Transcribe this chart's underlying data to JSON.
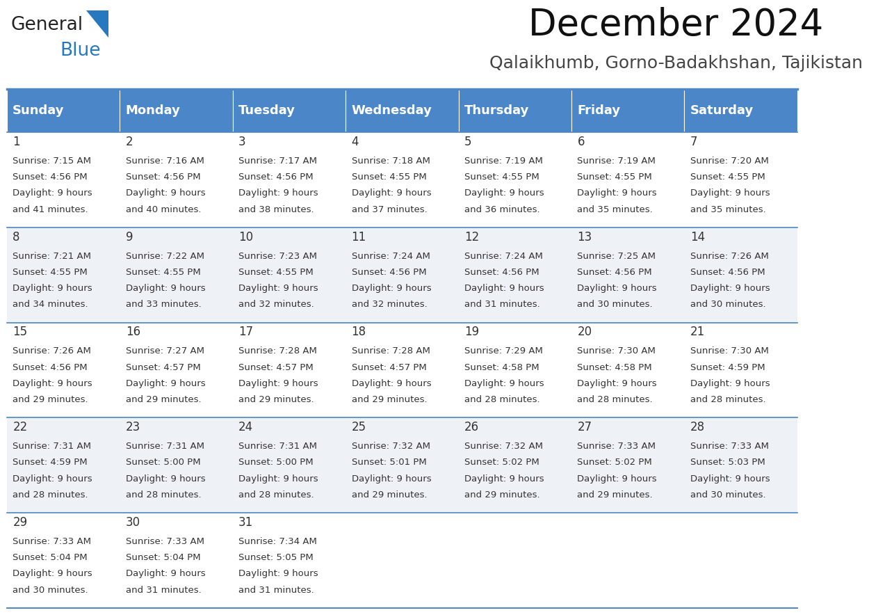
{
  "title": "December 2024",
  "subtitle": "Qalaikhumb, Gorno-Badakhshan, Tajikistan",
  "header_color": "#4a86c8",
  "header_text_color": "#ffffff",
  "cell_bg_even": "#ffffff",
  "cell_bg_odd": "#eef2f7",
  "border_color": "#4a86c8",
  "text_color": "#333333",
  "days_of_week": [
    "Sunday",
    "Monday",
    "Tuesday",
    "Wednesday",
    "Thursday",
    "Friday",
    "Saturday"
  ],
  "weeks": [
    [
      {
        "day": 1,
        "sunrise": "7:15 AM",
        "sunset": "4:56 PM",
        "daylight_hours": 9,
        "daylight_minutes": 41
      },
      {
        "day": 2,
        "sunrise": "7:16 AM",
        "sunset": "4:56 PM",
        "daylight_hours": 9,
        "daylight_minutes": 40
      },
      {
        "day": 3,
        "sunrise": "7:17 AM",
        "sunset": "4:56 PM",
        "daylight_hours": 9,
        "daylight_minutes": 38
      },
      {
        "day": 4,
        "sunrise": "7:18 AM",
        "sunset": "4:55 PM",
        "daylight_hours": 9,
        "daylight_minutes": 37
      },
      {
        "day": 5,
        "sunrise": "7:19 AM",
        "sunset": "4:55 PM",
        "daylight_hours": 9,
        "daylight_minutes": 36
      },
      {
        "day": 6,
        "sunrise": "7:19 AM",
        "sunset": "4:55 PM",
        "daylight_hours": 9,
        "daylight_minutes": 35
      },
      {
        "day": 7,
        "sunrise": "7:20 AM",
        "sunset": "4:55 PM",
        "daylight_hours": 9,
        "daylight_minutes": 35
      }
    ],
    [
      {
        "day": 8,
        "sunrise": "7:21 AM",
        "sunset": "4:55 PM",
        "daylight_hours": 9,
        "daylight_minutes": 34
      },
      {
        "day": 9,
        "sunrise": "7:22 AM",
        "sunset": "4:55 PM",
        "daylight_hours": 9,
        "daylight_minutes": 33
      },
      {
        "day": 10,
        "sunrise": "7:23 AM",
        "sunset": "4:55 PM",
        "daylight_hours": 9,
        "daylight_minutes": 32
      },
      {
        "day": 11,
        "sunrise": "7:24 AM",
        "sunset": "4:56 PM",
        "daylight_hours": 9,
        "daylight_minutes": 32
      },
      {
        "day": 12,
        "sunrise": "7:24 AM",
        "sunset": "4:56 PM",
        "daylight_hours": 9,
        "daylight_minutes": 31
      },
      {
        "day": 13,
        "sunrise": "7:25 AM",
        "sunset": "4:56 PM",
        "daylight_hours": 9,
        "daylight_minutes": 30
      },
      {
        "day": 14,
        "sunrise": "7:26 AM",
        "sunset": "4:56 PM",
        "daylight_hours": 9,
        "daylight_minutes": 30
      }
    ],
    [
      {
        "day": 15,
        "sunrise": "7:26 AM",
        "sunset": "4:56 PM",
        "daylight_hours": 9,
        "daylight_minutes": 29
      },
      {
        "day": 16,
        "sunrise": "7:27 AM",
        "sunset": "4:57 PM",
        "daylight_hours": 9,
        "daylight_minutes": 29
      },
      {
        "day": 17,
        "sunrise": "7:28 AM",
        "sunset": "4:57 PM",
        "daylight_hours": 9,
        "daylight_minutes": 29
      },
      {
        "day": 18,
        "sunrise": "7:28 AM",
        "sunset": "4:57 PM",
        "daylight_hours": 9,
        "daylight_minutes": 29
      },
      {
        "day": 19,
        "sunrise": "7:29 AM",
        "sunset": "4:58 PM",
        "daylight_hours": 9,
        "daylight_minutes": 28
      },
      {
        "day": 20,
        "sunrise": "7:30 AM",
        "sunset": "4:58 PM",
        "daylight_hours": 9,
        "daylight_minutes": 28
      },
      {
        "day": 21,
        "sunrise": "7:30 AM",
        "sunset": "4:59 PM",
        "daylight_hours": 9,
        "daylight_minutes": 28
      }
    ],
    [
      {
        "day": 22,
        "sunrise": "7:31 AM",
        "sunset": "4:59 PM",
        "daylight_hours": 9,
        "daylight_minutes": 28
      },
      {
        "day": 23,
        "sunrise": "7:31 AM",
        "sunset": "5:00 PM",
        "daylight_hours": 9,
        "daylight_minutes": 28
      },
      {
        "day": 24,
        "sunrise": "7:31 AM",
        "sunset": "5:00 PM",
        "daylight_hours": 9,
        "daylight_minutes": 28
      },
      {
        "day": 25,
        "sunrise": "7:32 AM",
        "sunset": "5:01 PM",
        "daylight_hours": 9,
        "daylight_minutes": 29
      },
      {
        "day": 26,
        "sunrise": "7:32 AM",
        "sunset": "5:02 PM",
        "daylight_hours": 9,
        "daylight_minutes": 29
      },
      {
        "day": 27,
        "sunrise": "7:33 AM",
        "sunset": "5:02 PM",
        "daylight_hours": 9,
        "daylight_minutes": 29
      },
      {
        "day": 28,
        "sunrise": "7:33 AM",
        "sunset": "5:03 PM",
        "daylight_hours": 9,
        "daylight_minutes": 30
      }
    ],
    [
      {
        "day": 29,
        "sunrise": "7:33 AM",
        "sunset": "5:04 PM",
        "daylight_hours": 9,
        "daylight_minutes": 30
      },
      {
        "day": 30,
        "sunrise": "7:33 AM",
        "sunset": "5:04 PM",
        "daylight_hours": 9,
        "daylight_minutes": 31
      },
      {
        "day": 31,
        "sunrise": "7:34 AM",
        "sunset": "5:05 PM",
        "daylight_hours": 9,
        "daylight_minutes": 31
      },
      null,
      null,
      null,
      null
    ]
  ],
  "logo_general_color": "#222222",
  "logo_blue_color": "#2878c0",
  "logo_triangle_color": "#2878c0"
}
